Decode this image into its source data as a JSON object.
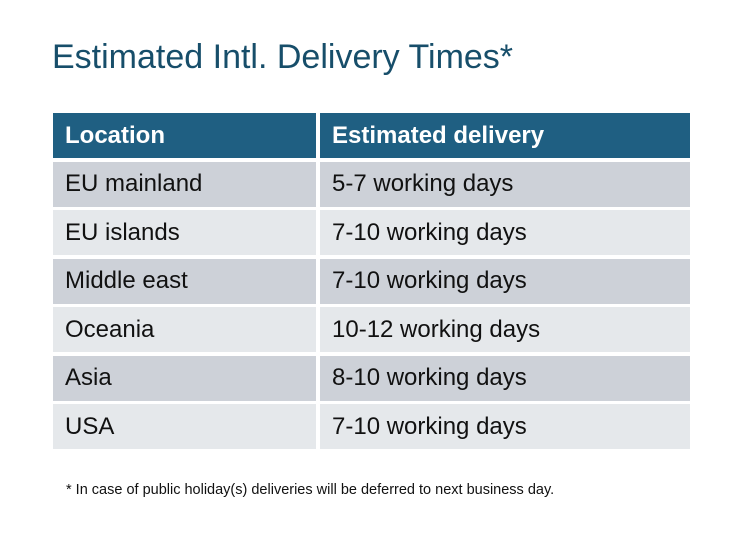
{
  "title": "Estimated Intl. Delivery Times*",
  "table": {
    "headers": [
      "Location",
      "Estimated delivery"
    ],
    "rows": [
      [
        "EU mainland",
        "5-7 working days"
      ],
      [
        "EU islands",
        "7-10 working days"
      ],
      [
        "Middle east",
        "7-10 working days"
      ],
      [
        "Oceania",
        "10-12 working days"
      ],
      [
        "Asia",
        "8-10 working days"
      ],
      [
        "USA",
        "7-10 working days"
      ]
    ]
  },
  "footnote": "* In case of public holiday(s) deliveries will be deferred to next business day.",
  "colors": {
    "header": "#1f5f82",
    "title": "#174e6a",
    "row_dark": "#cdd1d8",
    "row_light": "#e5e8eb"
  }
}
